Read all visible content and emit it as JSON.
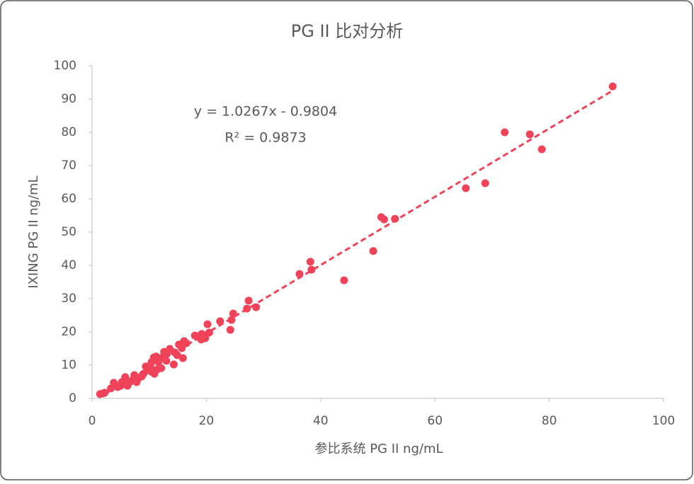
{
  "chart_data": {
    "type": "scatter",
    "title": "PG II 比对分析",
    "x_label": "参比系统 PG II ng/mL",
    "y_label": "IXING PG II ng/mL",
    "color": "#f0435a",
    "xlim": [
      0,
      100
    ],
    "xticks": [
      0,
      20,
      40,
      60,
      80,
      100
    ],
    "ylim": [
      0,
      100
    ],
    "yticks": [
      0,
      10,
      20,
      30,
      40,
      50,
      60,
      70,
      80,
      90,
      100
    ],
    "trendline": {
      "slope": 1.0267,
      "intercept": -0.9804,
      "equation": "y = 1.0267x - 0.9804",
      "r2": 0.9873,
      "r2_label": "R² = 0.9873"
    },
    "x": [
      91.1,
      72.2,
      76.6,
      78.7,
      68.8,
      65.4,
      50.6,
      51.1,
      53.0,
      49.2,
      44.1,
      38.2,
      38.4,
      36.3,
      27.4,
      28.7,
      27.1,
      24.7,
      24.4,
      24.2,
      22.4,
      20.2,
      20.5,
      19.8,
      19.2,
      19.1,
      18.0,
      16.5,
      16.1,
      15.7,
      15.9,
      15.2,
      14.5,
      14.3,
      13.6,
      13.1,
      12.6,
      12.3,
      11.6,
      11.2,
      10.8,
      10.4,
      10.9,
      10.2,
      9.7,
      9.0,
      8.7,
      8.2,
      7.4,
      7.1,
      6.6,
      5.8,
      5.6,
      5.0,
      4.5,
      3.8,
      3.3,
      2.2,
      1.4,
      1.9,
      12.1,
      13.0,
      14.9,
      11.4,
      9.4,
      10.3,
      7.8,
      6.2,
      5.2
    ],
    "y": [
      93.8,
      80.0,
      79.4,
      74.9,
      64.7,
      63.2,
      54.5,
      53.8,
      54.0,
      44.3,
      35.5,
      41.1,
      38.7,
      37.4,
      29.4,
      27.4,
      27.0,
      25.5,
      23.6,
      20.6,
      23.2,
      22.3,
      19.8,
      18.1,
      19.4,
      17.7,
      18.9,
      16.6,
      17.2,
      15.1,
      12.1,
      16.2,
      13.8,
      10.2,
      14.9,
      13.4,
      14.0,
      12.3,
      10.9,
      12.6,
      12.3,
      10.9,
      7.4,
      9.6,
      8.7,
      7.4,
      6.6,
      6.2,
      7.0,
      5.5,
      4.9,
      6.4,
      4.3,
      3.8,
      3.4,
      4.7,
      3.0,
      1.7,
      1.3,
      1.5,
      9.1,
      11.3,
      13.0,
      8.7,
      9.6,
      8.1,
      4.9,
      3.8,
      4.9
    ]
  }
}
